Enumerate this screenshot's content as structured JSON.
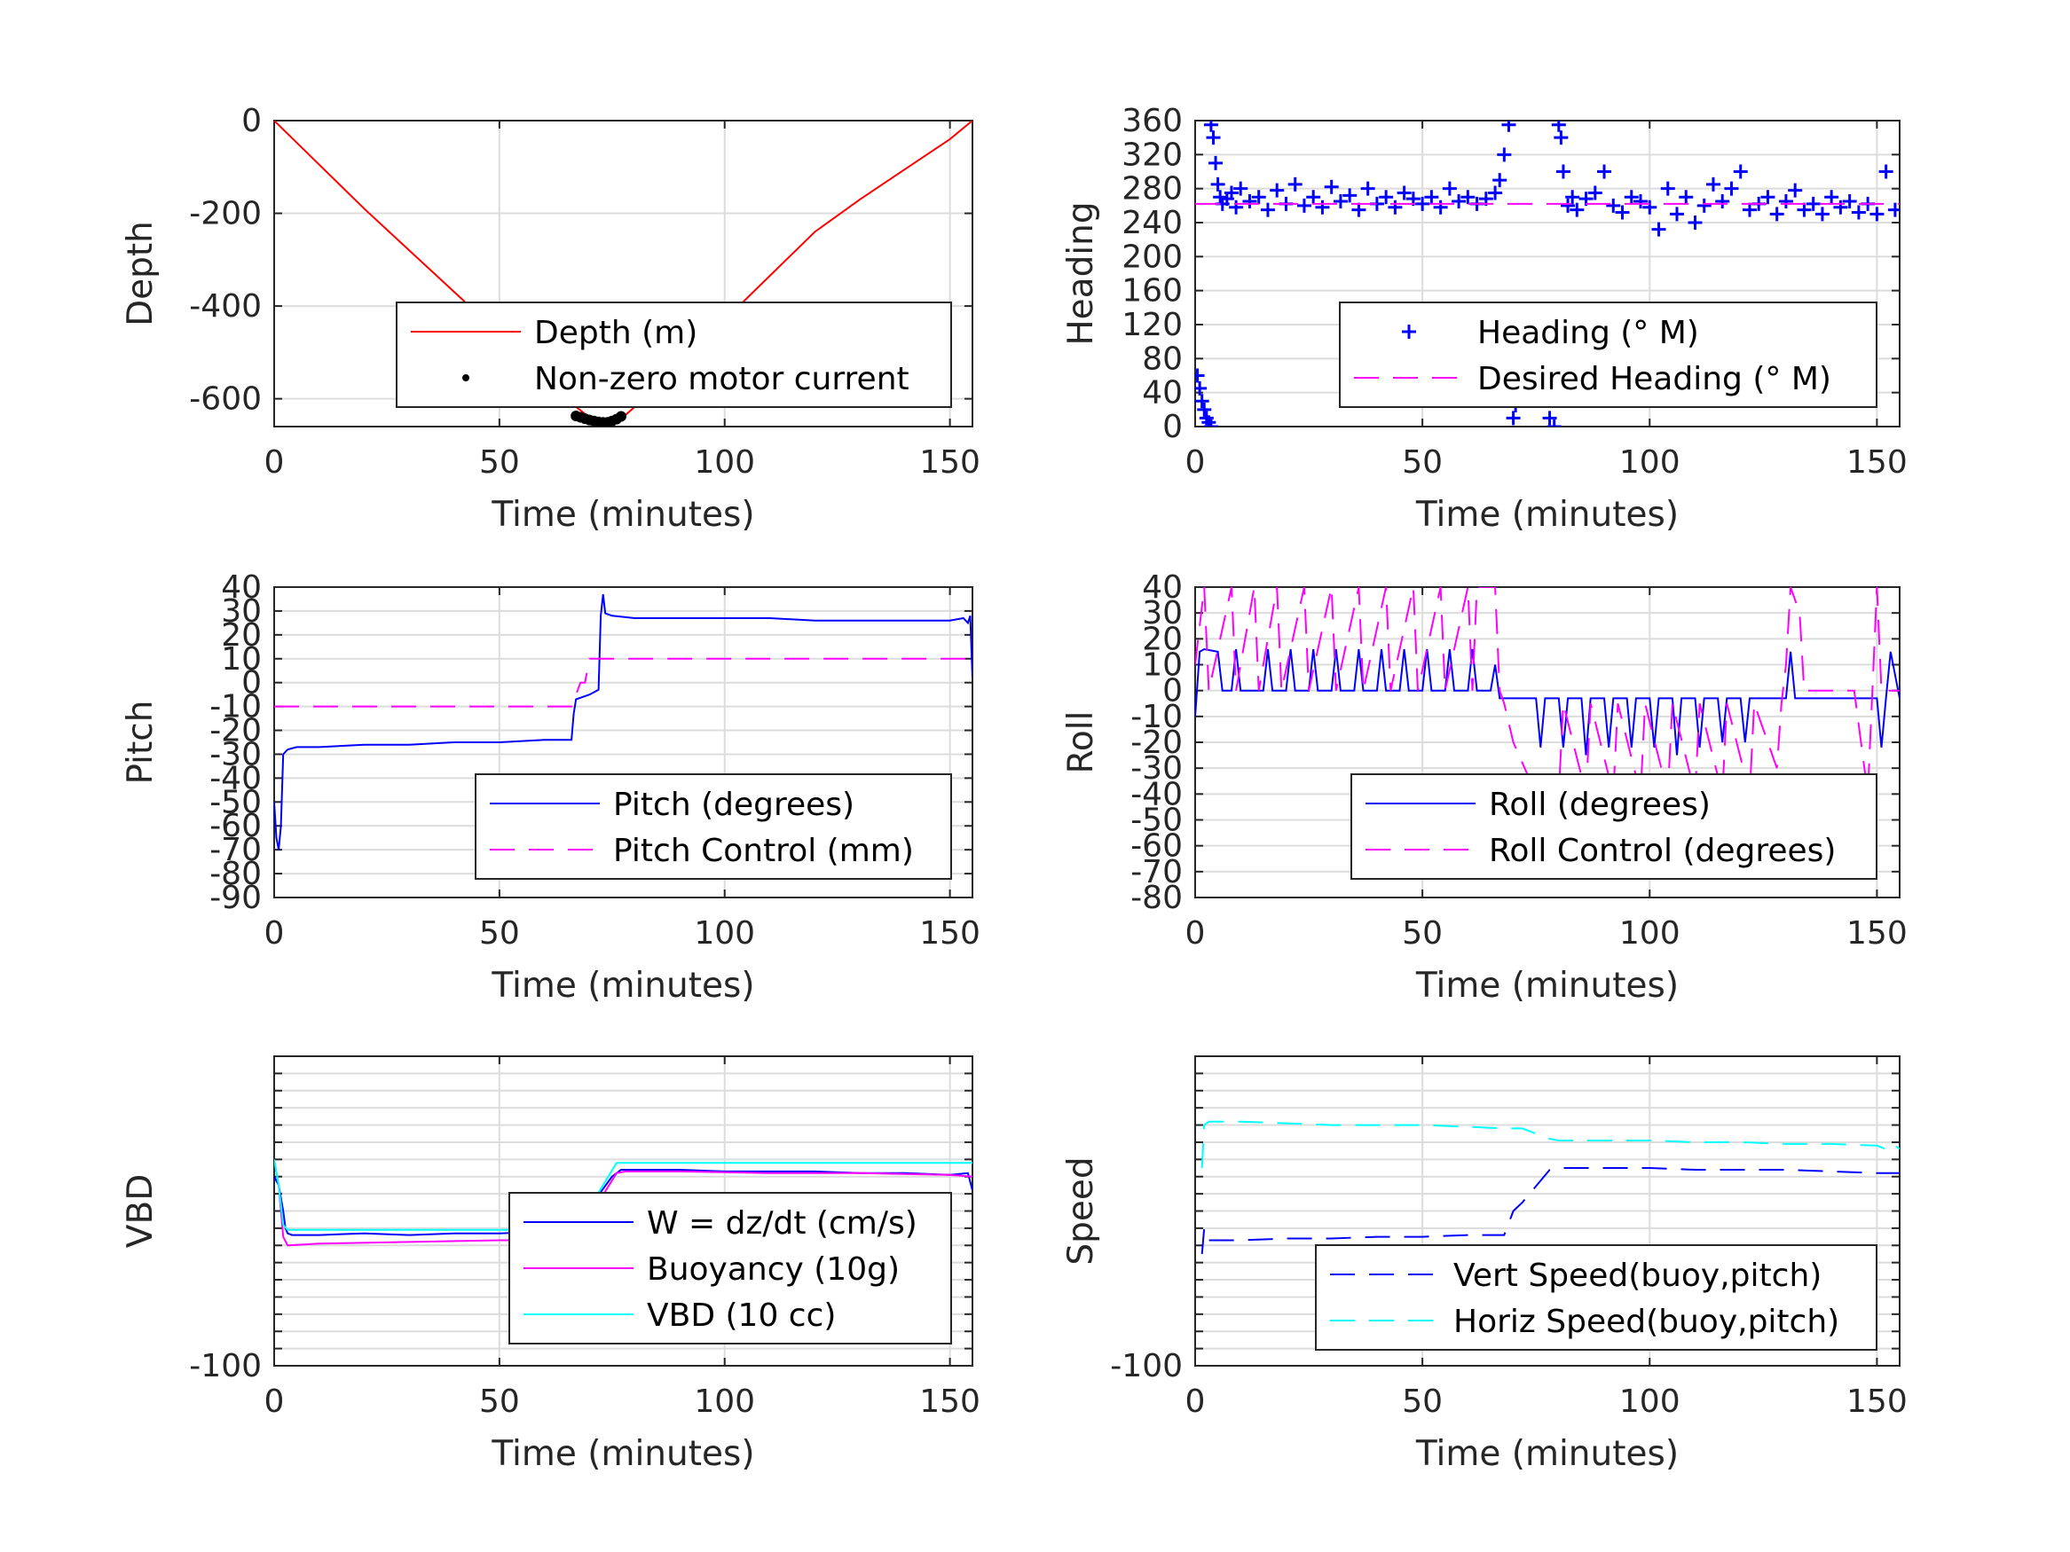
{
  "chart_data": [
    {
      "type": "line",
      "xlabel": "Time (minutes)",
      "ylabel": "Depth",
      "xlim": [
        0,
        155
      ],
      "ylim": [
        -660,
        0
      ],
      "xticks": [
        0,
        50,
        100,
        150
      ],
      "yticks": [
        -600,
        -400,
        -200,
        0
      ],
      "ytick_labels": [
        "-600",
        "-400",
        "-200",
        "0"
      ],
      "grid": true,
      "legend": "bottom-right",
      "series": [
        {
          "name": "Depth (m)",
          "color": "#ff0000",
          "style": "solid",
          "x": [
            0,
            10,
            20,
            30,
            40,
            50,
            60,
            66,
            70,
            74,
            78,
            85,
            90,
            100,
            110,
            120,
            130,
            140,
            150,
            155
          ],
          "y": [
            0,
            -95,
            -190,
            -280,
            -370,
            -460,
            -550,
            -610,
            -640,
            -650,
            -635,
            -575,
            -525,
            -430,
            -335,
            -240,
            -170,
            -105,
            -40,
            0
          ]
        },
        {
          "name": "Non-zero motor current",
          "color": "#000000",
          "style": "dots",
          "x": [
            67,
            68,
            69,
            70,
            71,
            72,
            73,
            74,
            75,
            76,
            77
          ],
          "y": [
            -637,
            -640,
            -643,
            -646,
            -648,
            -650,
            -651,
            -651,
            -648,
            -644,
            -638
          ]
        }
      ]
    },
    {
      "type": "scatter",
      "xlabel": "Time (minutes)",
      "ylabel": "Heading",
      "xlim": [
        0,
        155
      ],
      "ylim": [
        0,
        360
      ],
      "xticks": [
        0,
        50,
        100,
        150
      ],
      "yticks": [
        0,
        40,
        80,
        120,
        160,
        200,
        240,
        280,
        320,
        360
      ],
      "ytick_labels": [
        "0",
        "40",
        "80",
        "120",
        "160",
        "200",
        "240",
        "280",
        "320",
        "360"
      ],
      "grid": true,
      "legend": "bottom-right",
      "series": [
        {
          "name": "Heading (° M)",
          "color": "#0000ff",
          "style": "plus",
          "x": [
            0.5,
            1,
            1.5,
            2,
            2.5,
            3,
            3.5,
            3.5,
            4,
            4.5,
            5,
            5.5,
            6,
            7,
            8,
            9,
            10,
            12,
            14,
            16,
            18,
            20,
            22,
            24,
            26,
            28,
            30,
            32,
            34,
            36,
            38,
            40,
            42,
            44,
            46,
            48,
            50,
            52,
            54,
            56,
            58,
            60,
            62,
            64,
            66,
            67,
            68,
            69,
            70,
            70.5,
            71,
            72,
            73,
            74,
            75,
            76,
            77,
            78,
            79,
            80,
            80.5,
            81,
            82,
            83,
            84,
            86,
            88,
            90,
            92,
            94,
            96,
            98,
            100,
            102,
            104,
            106,
            108,
            110,
            112,
            114,
            116,
            118,
            120,
            122,
            124,
            126,
            128,
            130,
            132,
            134,
            136,
            138,
            140,
            142,
            144,
            146,
            148,
            150,
            152,
            154
          ],
          "y": [
            60,
            45,
            30,
            20,
            10,
            5,
            0,
            355,
            340,
            310,
            285,
            270,
            262,
            268,
            275,
            258,
            280,
            265,
            270,
            255,
            278,
            262,
            285,
            260,
            270,
            258,
            282,
            265,
            272,
            255,
            280,
            262,
            270,
            258,
            275,
            268,
            262,
            270,
            258,
            280,
            265,
            270,
            262,
            268,
            275,
            290,
            320,
            355,
            10,
            25,
            55,
            85,
            95,
            92,
            80,
            60,
            35,
            10,
            0,
            355,
            340,
            300,
            260,
            270,
            255,
            268,
            275,
            300,
            260,
            252,
            270,
            265,
            258,
            232,
            280,
            250,
            270,
            240,
            260,
            285,
            265,
            280,
            300,
            255,
            262,
            270,
            250,
            265,
            278,
            255,
            262,
            250,
            270,
            258,
            265,
            252,
            262,
            250,
            300,
            255
          ]
        },
        {
          "name": "Desired Heading (° M)",
          "color": "#ff00ff",
          "style": "dashed",
          "x": [
            0,
            155
          ],
          "y": [
            262,
            262
          ]
        }
      ]
    },
    {
      "type": "line",
      "xlabel": "Time (minutes)",
      "ylabel": "Pitch",
      "xlim": [
        0,
        155
      ],
      "ylim": [
        -90,
        40
      ],
      "xticks": [
        0,
        50,
        100,
        150
      ],
      "yticks": [
        -90,
        -80,
        -70,
        -60,
        -50,
        -40,
        -30,
        -20,
        -10,
        0,
        10,
        20,
        30,
        40
      ],
      "ytick_labels": [
        "-90",
        "-80",
        "-70",
        "-60",
        "-50",
        "-40",
        "-30",
        "-20",
        "-10",
        "0",
        "10",
        "20",
        "30",
        "40"
      ],
      "grid": true,
      "legend": "bottom-right",
      "series": [
        {
          "name": "Pitch (degrees)",
          "color": "#0000ff",
          "style": "solid",
          "x": [
            0,
            0.5,
            1,
            1.5,
            2,
            3,
            5,
            10,
            20,
            30,
            40,
            50,
            60,
            66,
            66.5,
            67,
            70,
            72,
            72.5,
            73,
            73.5,
            75,
            80,
            90,
            100,
            110,
            120,
            130,
            140,
            150,
            153,
            154,
            154.5,
            155
          ],
          "y": [
            -50,
            -65,
            -70,
            -60,
            -30,
            -28,
            -27,
            -27,
            -26,
            -26,
            -25,
            -25,
            -24,
            -24,
            -13,
            -7,
            -5,
            -3,
            28,
            37,
            29,
            28,
            27,
            27,
            27,
            27,
            26,
            26,
            26,
            26,
            27,
            25,
            28,
            2
          ]
        },
        {
          "name": "Pitch Control (mm)",
          "color": "#ff00ff",
          "style": "dashed",
          "x": [
            0,
            65,
            66,
            68,
            69,
            70,
            155
          ],
          "y": [
            -10,
            -10,
            -10,
            0,
            0,
            10,
            10
          ]
        }
      ]
    },
    {
      "type": "line",
      "xlabel": "Time (minutes)",
      "ylabel": "Roll",
      "xlim": [
        0,
        155
      ],
      "ylim": [
        -80,
        40
      ],
      "xticks": [
        0,
        50,
        100,
        150
      ],
      "yticks": [
        -80,
        -70,
        -60,
        -50,
        -40,
        -30,
        -20,
        -10,
        0,
        10,
        20,
        30,
        40
      ],
      "ytick_labels": [
        "-80",
        "-70",
        "-60",
        "-50",
        "-40",
        "-30",
        "-20",
        "-10",
        "0",
        "10",
        "20",
        "30",
        "40"
      ],
      "grid": true,
      "legend": "bottom-right",
      "series": [
        {
          "name": "Roll (degrees)",
          "color": "#0000ff",
          "style": "solid",
          "x": [
            0,
            1,
            2,
            5,
            6,
            8,
            9,
            10,
            15,
            16,
            17,
            20,
            21,
            22,
            25,
            26,
            27,
            30,
            31,
            32,
            35,
            36,
            37,
            40,
            41,
            42,
            45,
            46,
            47,
            50,
            51,
            52,
            55,
            56,
            57,
            60,
            61,
            62,
            65,
            66,
            67,
            68,
            70,
            75,
            76,
            77,
            80,
            81,
            82,
            85,
            86,
            87,
            90,
            91,
            92,
            95,
            96,
            97,
            100,
            101,
            102,
            105,
            106,
            107,
            110,
            111,
            112,
            115,
            116,
            117,
            120,
            121,
            122,
            125,
            130,
            131,
            132,
            133,
            135,
            140,
            145,
            150,
            151,
            152,
            153,
            155
          ],
          "y": [
            -10,
            15,
            16,
            15,
            0,
            0,
            16,
            0,
            0,
            16,
            0,
            0,
            16,
            0,
            0,
            16,
            0,
            0,
            16,
            0,
            0,
            16,
            0,
            0,
            16,
            0,
            0,
            16,
            0,
            0,
            16,
            0,
            0,
            16,
            0,
            0,
            16,
            0,
            0,
            10,
            -3,
            -3,
            -3,
            -3,
            -22,
            -3,
            -3,
            -22,
            -3,
            -3,
            -25,
            -3,
            -3,
            -22,
            -3,
            -3,
            -22,
            -3,
            -3,
            -22,
            -3,
            -3,
            -25,
            -3,
            -3,
            -22,
            -3,
            -3,
            -20,
            -3,
            -3,
            -20,
            -3,
            -3,
            -3,
            15,
            -3,
            -3,
            -3,
            -3,
            -3,
            -3,
            -22,
            -3,
            15,
            -3
          ]
        },
        {
          "name": "Roll Control (degrees)",
          "color": "#ff00ff",
          "style": "dashed",
          "x": [
            0,
            2,
            3,
            8,
            9,
            13,
            14,
            18,
            19,
            24,
            25,
            30,
            31,
            36,
            37,
            42,
            43,
            48,
            49,
            54,
            55,
            60,
            61,
            62,
            64,
            66,
            67,
            68,
            70,
            75,
            80,
            81,
            86,
            87,
            92,
            93,
            98,
            99,
            104,
            105,
            110,
            111,
            116,
            117,
            122,
            123,
            128,
            129,
            130,
            131,
            133,
            134,
            138,
            145,
            148,
            149,
            150,
            151,
            153,
            155
          ],
          "y": [
            10,
            40,
            0,
            40,
            0,
            40,
            0,
            40,
            0,
            40,
            0,
            40,
            0,
            40,
            0,
            40,
            0,
            40,
            0,
            40,
            0,
            40,
            0,
            40,
            40,
            40,
            0,
            -5,
            -20,
            -40,
            -40,
            -5,
            -40,
            -5,
            -40,
            -5,
            -40,
            -5,
            -40,
            -5,
            -40,
            -5,
            -40,
            -5,
            -40,
            -5,
            -30,
            -5,
            10,
            40,
            30,
            0,
            0,
            0,
            -40,
            0,
            40,
            0,
            0,
            0
          ]
        }
      ]
    },
    {
      "type": "line",
      "xlabel": "Time (minutes)",
      "ylabel": "VBD",
      "xlim": [
        0,
        155
      ],
      "ylim": [
        -100,
        80
      ],
      "xticks": [
        0,
        50,
        100,
        150
      ],
      "yticks": [
        -100
      ],
      "ytick_labels": [
        "-100"
      ],
      "grid": true,
      "legend": "bottom-right",
      "series": [
        {
          "name": "W = dz/dt (cm/s)",
          "color": "#0000ff",
          "style": "solid",
          "x": [
            0,
            1,
            2,
            2.5,
            3,
            4,
            10,
            20,
            30,
            40,
            50,
            60,
            65,
            66,
            67,
            68,
            70,
            75,
            77,
            80,
            90,
            100,
            110,
            120,
            130,
            140,
            150,
            154,
            155
          ],
          "y": [
            10,
            5,
            -10,
            -20,
            -23,
            -24,
            -24,
            -23,
            -24,
            -23,
            -23,
            -22,
            -22,
            -21,
            -15,
            -10,
            -8,
            10,
            14,
            14,
            14,
            13,
            13,
            13,
            12,
            12,
            11,
            12,
            2
          ]
        },
        {
          "name": "Buoyancy (10g)",
          "color": "#ff00ff",
          "style": "solid",
          "x": [
            0,
            1,
            2,
            3,
            10,
            30,
            50,
            66,
            67,
            76,
            78,
            90,
            110,
            130,
            150,
            155
          ],
          "y": [
            20,
            5,
            -25,
            -30,
            -29,
            -28,
            -27,
            -27,
            -26,
            12,
            13,
            13,
            12,
            12,
            11,
            10
          ]
        },
        {
          "name": "VBD (10 cc)",
          "color": "#00ffff",
          "style": "solid",
          "x": [
            0,
            1,
            2,
            3,
            10,
            30,
            50,
            66,
            67,
            76,
            78,
            90,
            110,
            130,
            150,
            155
          ],
          "y": [
            20,
            5,
            -18,
            -21,
            -21,
            -21,
            -21,
            -21,
            -21,
            18,
            18,
            18,
            18,
            18,
            18,
            18
          ]
        }
      ]
    },
    {
      "type": "line",
      "xlabel": "Time (minutes)",
      "ylabel": "Speed",
      "xlim": [
        0,
        155
      ],
      "ylim": [
        -100,
        80
      ],
      "xticks": [
        0,
        50,
        100,
        150
      ],
      "yticks": [
        -100
      ],
      "ytick_labels": [
        "-100"
      ],
      "grid": true,
      "legend": "bottom-right",
      "series": [
        {
          "name": "Vert Speed(buoy,pitch)",
          "color": "#0000ff",
          "style": "dashed",
          "x": [
            1.5,
            2,
            3,
            10,
            20,
            30,
            40,
            50,
            60,
            68,
            70,
            72,
            78,
            80,
            90,
            100,
            110,
            120,
            130,
            140,
            150,
            155
          ],
          "y": [
            -35,
            -20,
            -27,
            -27,
            -26,
            -26,
            -25,
            -25,
            -24,
            -24,
            -10,
            -5,
            14,
            15,
            15,
            15,
            14,
            14,
            14,
            13,
            12,
            12
          ]
        },
        {
          "name": "Horiz Speed(buoy,pitch)",
          "color": "#00ffff",
          "style": "dashed",
          "x": [
            1.5,
            2,
            3,
            10,
            20,
            30,
            40,
            50,
            60,
            68,
            72,
            78,
            80,
            90,
            100,
            110,
            120,
            130,
            140,
            150,
            153,
            154,
            155
          ],
          "y": [
            15,
            40,
            42,
            42,
            41,
            40,
            40,
            40,
            39,
            38,
            38,
            32,
            31,
            31,
            31,
            30,
            30,
            29,
            29,
            28,
            25,
            28,
            26
          ]
        }
      ]
    }
  ]
}
